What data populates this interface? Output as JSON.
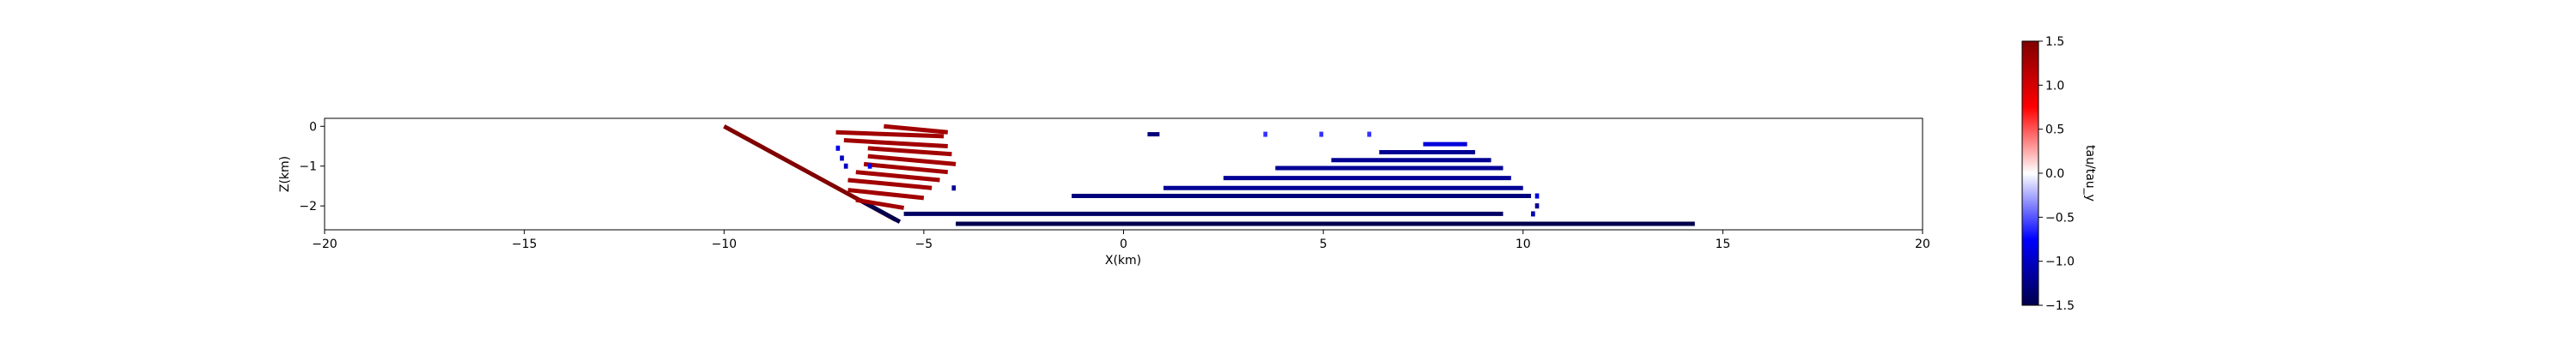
{
  "chart_data": {
    "type": "scatter",
    "title": "",
    "xlabel": "X(km)",
    "ylabel": "Z(km)",
    "xlim": [
      -20,
      20
    ],
    "ylim": [
      -2.6,
      0.2
    ],
    "xticks": [
      -20,
      -15,
      -10,
      -5,
      0,
      5,
      10,
      15,
      20
    ],
    "yticks": [
      0,
      -1,
      -2
    ],
    "grid": false,
    "colormap": "seismic",
    "colorbar": {
      "label": "tau/tau_y",
      "range": [
        -1.5,
        1.5
      ],
      "ticks": [
        1.5,
        1.0,
        0.5,
        0.0,
        -0.5,
        -1.0,
        -1.5
      ],
      "tick_labels": [
        "1.5",
        "1.0",
        "0.5",
        "0.0",
        "−0.5",
        "−1.0",
        "−1.5"
      ]
    },
    "series": [
      {
        "x": [
          -10.0,
          -5.7
        ],
        "z": [
          0.0,
          -2.35
        ],
        "value": 1.5
      },
      {
        "x": [
          -6.6,
          -5.6
        ],
        "z": [
          -1.85,
          -2.4
        ],
        "value": -1.5
      },
      {
        "x": [
          -5.5,
          9.5
        ],
        "z": [
          -2.2,
          -2.2
        ],
        "value": -1.4
      },
      {
        "x": [
          -4.2,
          14.3
        ],
        "z": [
          -2.45,
          -2.45
        ],
        "value": -1.5
      },
      {
        "x": [
          -1.3,
          10.2
        ],
        "z": [
          -1.75,
          -1.75
        ],
        "value": -1.3
      },
      {
        "x": [
          1.0,
          10.0
        ],
        "z": [
          -1.55,
          -1.55
        ],
        "value": -1.2
      },
      {
        "x": [
          2.5,
          9.7
        ],
        "z": [
          -1.3,
          -1.3
        ],
        "value": -1.2
      },
      {
        "x": [
          3.8,
          9.5
        ],
        "z": [
          -1.05,
          -1.05
        ],
        "value": -1.2
      },
      {
        "x": [
          5.2,
          9.2
        ],
        "z": [
          -0.85,
          -0.85
        ],
        "value": -1.2
      },
      {
        "x": [
          6.4,
          8.8
        ],
        "z": [
          -0.65,
          -0.65
        ],
        "value": -1.2
      },
      {
        "x": [
          7.5,
          8.6
        ],
        "z": [
          -0.45,
          -0.45
        ],
        "value": -0.9
      },
      {
        "x": [
          -7.2,
          -4.5
        ],
        "z": [
          -0.15,
          -0.25
        ],
        "value": 1.3
      },
      {
        "x": [
          -6.0,
          -4.4
        ],
        "z": [
          0.0,
          -0.15
        ],
        "value": 1.3
      },
      {
        "x": [
          -7.0,
          -4.4
        ],
        "z": [
          -0.35,
          -0.5
        ],
        "value": 1.3
      },
      {
        "x": [
          -6.4,
          -4.3
        ],
        "z": [
          -0.55,
          -0.7
        ],
        "value": 1.3
      },
      {
        "x": [
          -6.4,
          -4.2
        ],
        "z": [
          -0.75,
          -0.95
        ],
        "value": 1.3
      },
      {
        "x": [
          -6.5,
          -4.4
        ],
        "z": [
          -0.95,
          -1.15
        ],
        "value": 1.3
      },
      {
        "x": [
          -6.7,
          -4.6
        ],
        "z": [
          -1.15,
          -1.35
        ],
        "value": 1.3
      },
      {
        "x": [
          -6.9,
          -4.8
        ],
        "z": [
          -1.35,
          -1.55
        ],
        "value": 1.3
      },
      {
        "x": [
          -6.9,
          -5.0
        ],
        "z": [
          -1.6,
          -1.8
        ],
        "value": 1.3
      },
      {
        "x": [
          -6.7,
          -5.5
        ],
        "z": [
          -1.85,
          -2.05
        ],
        "value": 1.3
      },
      {
        "x": [
          0.6,
          0.9
        ],
        "z": [
          -0.2,
          -0.2
        ],
        "value": -1.3
      },
      {
        "x": [
          3.5,
          3.6
        ],
        "z": [
          -0.2,
          -0.2
        ],
        "value": -0.6
      },
      {
        "x": [
          4.9,
          5.0
        ],
        "z": [
          -0.2,
          -0.2
        ],
        "value": -0.6
      },
      {
        "x": [
          6.1,
          6.2
        ],
        "z": [
          -0.2,
          -0.2
        ],
        "value": -0.6
      },
      {
        "x": [
          10.3,
          10.4
        ],
        "z": [
          -1.75,
          -1.75
        ],
        "value": -0.9
      },
      {
        "x": [
          10.3,
          10.4
        ],
        "z": [
          -2.0,
          -2.0
        ],
        "value": -1.2
      },
      {
        "x": [
          10.2,
          10.3
        ],
        "z": [
          -2.2,
          -2.2
        ],
        "value": -1.1
      },
      {
        "x": [
          -7.2,
          -7.1
        ],
        "z": [
          -0.55,
          -0.55
        ],
        "value": -0.8
      },
      {
        "x": [
          -7.1,
          -7.0
        ],
        "z": [
          -0.8,
          -0.8
        ],
        "value": -1.0
      },
      {
        "x": [
          -7.0,
          -6.9
        ],
        "z": [
          -1.0,
          -1.0
        ],
        "value": -1.0
      },
      {
        "x": [
          -6.4,
          -6.3
        ],
        "z": [
          -1.0,
          -1.0
        ],
        "value": -0.8
      },
      {
        "x": [
          -4.3,
          -4.2
        ],
        "z": [
          -1.55,
          -1.55
        ],
        "value": -1.2
      }
    ]
  }
}
